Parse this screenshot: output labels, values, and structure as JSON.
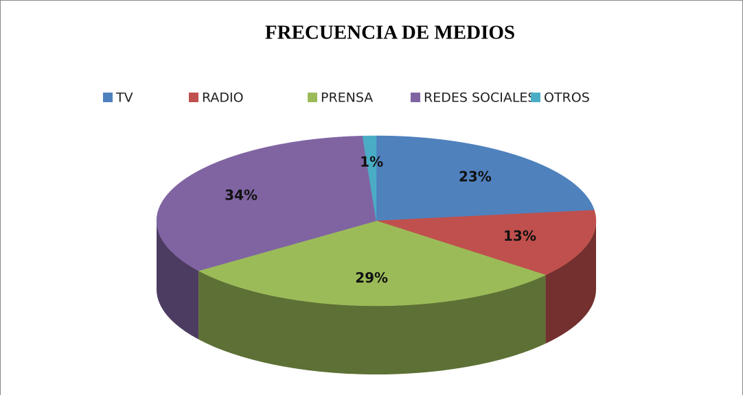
{
  "chart_data": {
    "type": "pie",
    "title": "FRECUENCIA DE MEDIOS",
    "categories": [
      "TV",
      "RADIO",
      "PRENSA",
      "REDES SOCIALES",
      "OTROS"
    ],
    "values": [
      23,
      13,
      29,
      34,
      1
    ],
    "value_labels": [
      "23%",
      "13%",
      "29%",
      "34%",
      "1%"
    ],
    "colors": [
      "#4f81bd",
      "#c0504d",
      "#9bbb59",
      "#8064a2",
      "#4bacc6"
    ],
    "legend": "top"
  }
}
